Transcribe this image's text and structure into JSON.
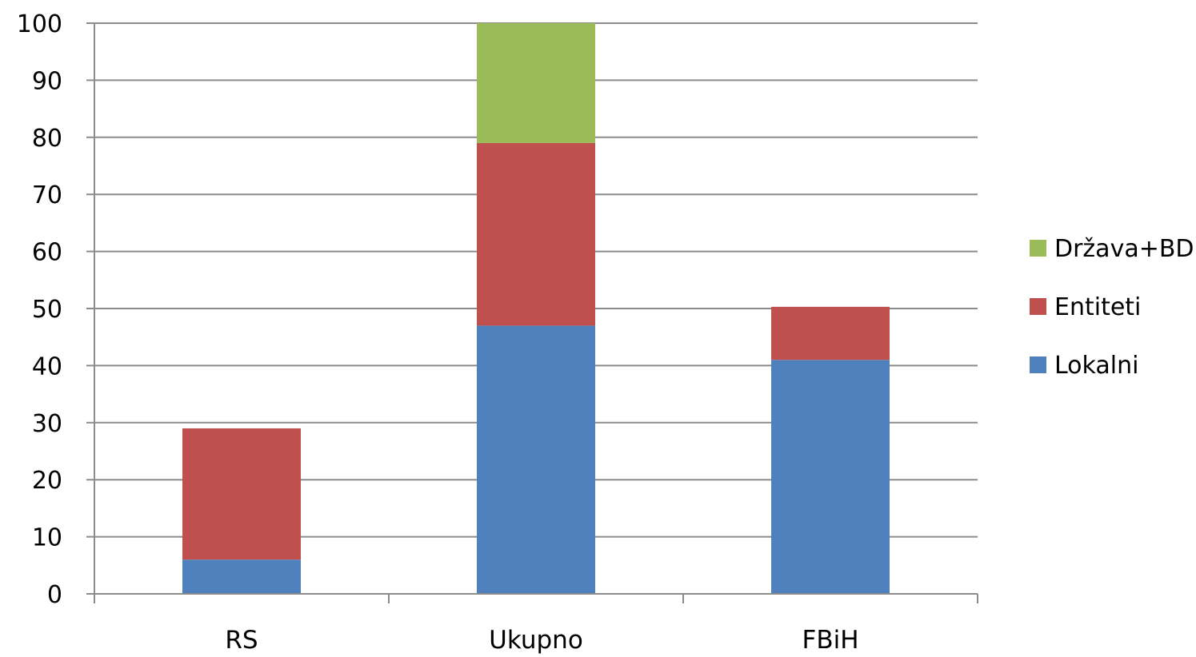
{
  "chart_data": {
    "type": "bar",
    "stacked": true,
    "categories": [
      "RS",
      "Ukupno",
      "FBiH"
    ],
    "series": [
      {
        "name": "Lokalni",
        "values": [
          6,
          47,
          41
        ],
        "color": "#4f81bd"
      },
      {
        "name": "Entiteti",
        "values": [
          23,
          32,
          9.3
        ],
        "color": "#c0504d"
      },
      {
        "name": "Država+BD",
        "values": [
          0,
          21,
          0
        ],
        "color": "#9bbb59"
      }
    ],
    "title": "",
    "xlabel": "",
    "ylabel": "",
    "ylim": [
      0,
      100
    ],
    "yticks": [
      0,
      10,
      20,
      30,
      40,
      50,
      60,
      70,
      80,
      90,
      100
    ],
    "grid": true,
    "legend": "right"
  }
}
